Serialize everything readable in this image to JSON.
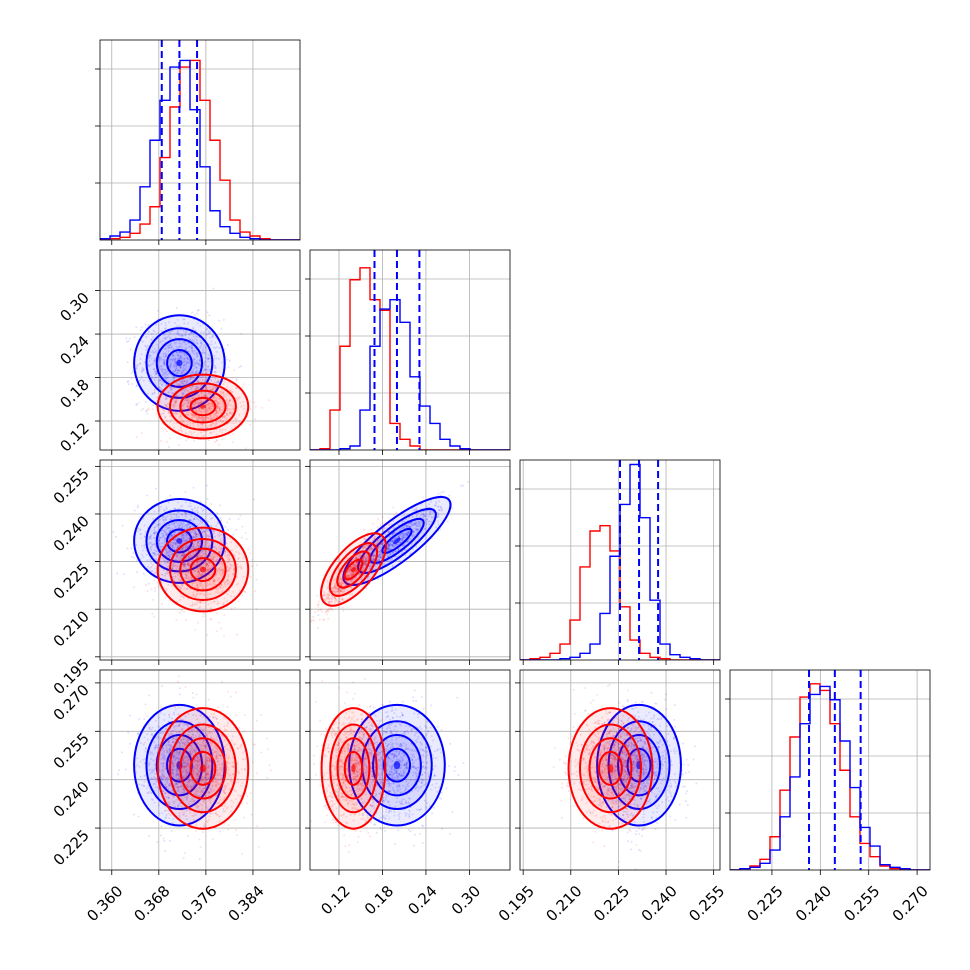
{
  "chart_data": {
    "type": "corner",
    "title": "",
    "colors": {
      "series_a": "#0000ff",
      "series_b": "#ff0000"
    },
    "grid": true,
    "legend": "none",
    "series": [
      {
        "color": "#0000ff",
        "mean": [
          0.3715,
          0.2,
          0.2315,
          0.2445
        ],
        "std": [
          0.0035,
          0.03,
          0.006,
          0.0085
        ],
        "correlations": [
          [
            1,
            0.0,
            0.0,
            0.0
          ],
          [
            0.0,
            1,
            0.9,
            0.0
          ],
          [
            0.0,
            0.9,
            1,
            0.0
          ],
          [
            0.0,
            0.0,
            0.0,
            1
          ]
        ],
        "quantiles": [
          [
            0.3685,
            0.3715,
            0.3745
          ],
          [
            0.169,
            0.2,
            0.231
          ],
          [
            0.2255,
            0.2315,
            0.2375
          ],
          [
            0.2365,
            0.2445,
            0.2525
          ]
        ]
      },
      {
        "color": "#ff0000",
        "mean": [
          0.3755,
          0.14,
          0.2225,
          0.2435
        ],
        "std": [
          0.0035,
          0.02,
          0.006,
          0.0085
        ],
        "correlations": [
          [
            1,
            0.0,
            0.0,
            0.0
          ],
          [
            0.0,
            1,
            0.9,
            0.0
          ],
          [
            0.0,
            0.9,
            1,
            0.0
          ],
          [
            0.0,
            0.0,
            0.0,
            1
          ]
        ]
      }
    ],
    "parameters": [
      {
        "range": [
          0.358,
          0.392
        ],
        "ticks": [
          "0.360",
          "0.368",
          "0.376",
          "0.384"
        ]
      },
      {
        "range": [
          0.08,
          0.356
        ],
        "ticks": [
          "0.12",
          "0.18",
          "0.24",
          "0.30"
        ]
      },
      {
        "range": [
          0.194,
          0.257
        ],
        "ticks": [
          "0.195",
          "0.210",
          "0.225",
          "0.240",
          "0.255"
        ]
      },
      {
        "range": [
          0.212,
          0.274
        ],
        "ticks": [
          "0.225",
          "0.240",
          "0.255",
          "0.270"
        ]
      }
    ],
    "histograms": [
      {
        "bins": 20,
        "series_a": [
          1,
          3,
          6,
          15,
          40,
          75,
          105,
          130,
          135,
          98,
          55,
          22,
          10,
          5,
          2,
          1,
          0,
          0,
          0,
          0
        ],
        "series_b": [
          0,
          1,
          2,
          5,
          12,
          25,
          62,
          100,
          130,
          135,
          105,
          75,
          45,
          15,
          6,
          3,
          1,
          0,
          0,
          0
        ]
      },
      {
        "bins": 20,
        "series_a": [
          0,
          0,
          0,
          1,
          3,
          30,
          78,
          106,
          113,
          96,
          55,
          33,
          20,
          8,
          3,
          1,
          0,
          0,
          0,
          0
        ],
        "series_b": [
          0,
          1,
          30,
          78,
          128,
          137,
          113,
          105,
          20,
          8,
          3,
          0,
          0,
          0,
          0,
          0,
          0,
          0,
          0,
          0
        ]
      },
      {
        "bins": 20,
        "series_a": [
          0,
          0,
          0,
          0,
          1,
          2,
          5,
          12,
          35,
          78,
          117,
          147,
          107,
          45,
          12,
          4,
          2,
          1,
          0,
          0
        ],
        "series_b": [
          0,
          1,
          2,
          5,
          12,
          30,
          70,
          97,
          101,
          82,
          40,
          15,
          5,
          2,
          1,
          0,
          0,
          0,
          0,
          0
        ]
      },
      {
        "bins": 20,
        "series_a": [
          0,
          1,
          2,
          5,
          15,
          40,
          70,
          110,
          132,
          138,
          128,
          97,
          62,
          32,
          18,
          4,
          2,
          1,
          0,
          0
        ],
        "series_b": [
          0,
          1,
          3,
          8,
          25,
          60,
          100,
          130,
          140,
          135,
          110,
          75,
          40,
          20,
          10,
          3,
          1,
          0,
          0,
          0
        ]
      }
    ]
  }
}
